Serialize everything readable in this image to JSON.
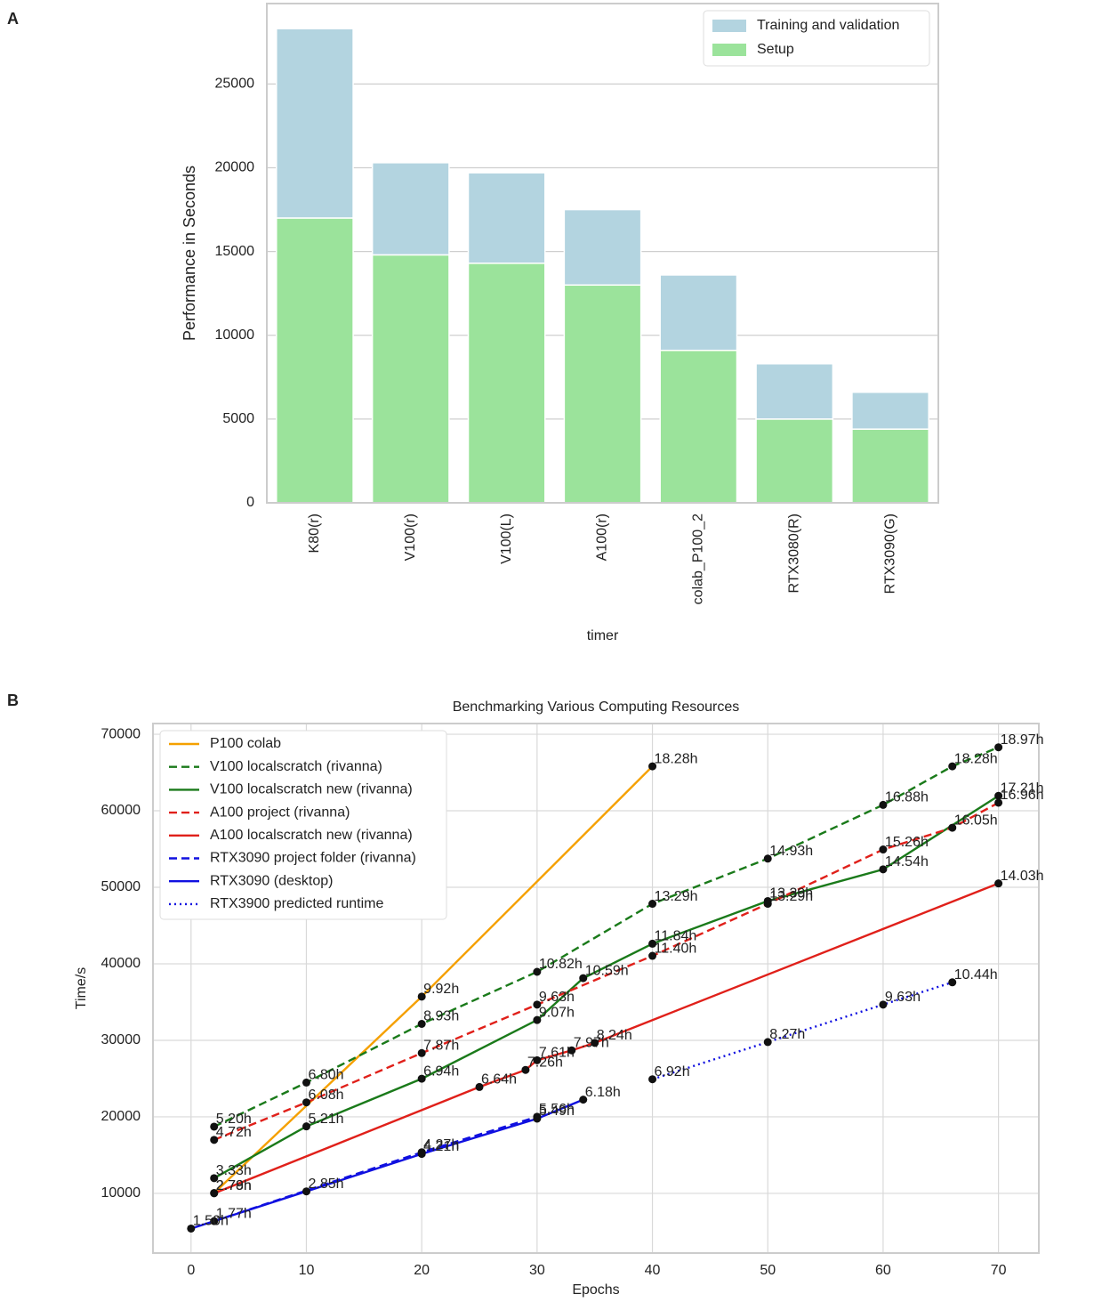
{
  "chart_data": [
    {
      "type": "bar",
      "panel_label": "A",
      "stacked": true,
      "categories": [
        "K80(r)",
        "V100(r)",
        "V100(L)",
        "A100(r)",
        "colab_P100_2",
        "RTX3080(R)",
        "RTX3090(G)"
      ],
      "series": [
        {
          "name": "Training and validation",
          "color": "#b3d4e0",
          "values": [
            11300,
            5500,
            5400,
            4500,
            4500,
            3300,
            2200
          ]
        },
        {
          "name": "Setup",
          "color": "#9be39b",
          "values": [
            17000,
            14800,
            14300,
            13000,
            9100,
            5000,
            4400
          ]
        }
      ],
      "xlabel": "timer",
      "ylabel": "Performance in Seconds",
      "ylim": [
        0,
        29800
      ],
      "yticks": [
        0,
        5000,
        10000,
        15000,
        20000,
        25000
      ],
      "grid": true,
      "legend": "upper right"
    },
    {
      "type": "line",
      "panel_label": "B",
      "title": "Benchmarking Various Computing Resources",
      "xlabel": "Epochs",
      "ylabel": "Time/s",
      "xlim": [
        -3.3,
        73.5
      ],
      "xticks": [
        0,
        10,
        20,
        30,
        40,
        50,
        60,
        70
      ],
      "ylim": [
        2200,
        71400
      ],
      "yticks": [
        10000,
        20000,
        30000,
        40000,
        50000,
        60000,
        70000
      ],
      "grid": true,
      "legend": "upper left",
      "marker_color": "#111111",
      "series": [
        {
          "name": "P100 colab",
          "color": "#f5a000",
          "style": "solid",
          "x": [
            2,
            20,
            40
          ],
          "values": [
            10044,
            35712,
            65808
          ],
          "value_labels": [
            "2.79h",
            "9.92h",
            "18.28h"
          ]
        },
        {
          "name": "V100 localscratch (rivanna)",
          "color": "#1a7a1a",
          "style": "dashed",
          "x": [
            2,
            10,
            20,
            30,
            40,
            50,
            60,
            66,
            70
          ],
          "values": [
            18720,
            24480,
            32148,
            38952,
            47844,
            53748,
            60768,
            65808,
            68292
          ],
          "value_labels": [
            "5.20h",
            "6.80h",
            "8.93h",
            "10.82h",
            "13.29h",
            "14.93h",
            "16.88h",
            "18.28h",
            "18.97h"
          ]
        },
        {
          "name": "V100 localscratch new (rivanna)",
          "color": "#1a7a1a",
          "style": "solid",
          "x": [
            2,
            10,
            20,
            30,
            34,
            40,
            50,
            60,
            70
          ],
          "values": [
            11988,
            18756,
            24984,
            32652,
            38124,
            42624,
            48204,
            52344,
            61956
          ],
          "value_labels": [
            "3.33h",
            "5.21h",
            "6.94h",
            "9.07h",
            "10.59h",
            "11.84h",
            "13.39h",
            "14.54h",
            "17.21h"
          ]
        },
        {
          "name": "A100 project (rivanna)",
          "color": "#e0201a",
          "style": "dashed",
          "x": [
            2,
            10,
            20,
            30,
            40,
            50,
            60,
            66,
            70
          ],
          "values": [
            16992,
            21888,
            28332,
            34668,
            41040,
            47844,
            54936,
            57780,
            61056
          ],
          "value_labels": [
            "4.72h",
            "6.08h",
            "7.87h",
            "9.63h",
            "11.40h",
            "13.29h",
            "15.26h",
            "16.05h",
            "16.96h"
          ]
        },
        {
          "name": "A100 localscratch new (rivanna)",
          "color": "#e0201a",
          "style": "solid",
          "x": [
            2,
            25,
            29,
            30,
            33,
            35,
            70
          ],
          "values": [
            10008,
            23904,
            26136,
            27396,
            28692,
            29664,
            50508
          ],
          "value_labels": [
            "2.78h",
            "6.64h",
            "7.26h",
            "7.61h",
            "7.97h",
            "8.24h",
            "14.03h"
          ]
        },
        {
          "name": "RTX3090 project folder (rivanna)",
          "color": "#1010e0",
          "style": "dashed",
          "x": [
            2,
            20,
            30
          ],
          "values": [
            6372,
            15372,
            20016
          ],
          "value_labels": [
            "1.77h",
            "4.27h",
            "5.56h"
          ]
        },
        {
          "name": "RTX3090 (desktop)",
          "color": "#1010e0",
          "style": "solid",
          "x": [
            0,
            10,
            20,
            30,
            34
          ],
          "values": [
            5400,
            10260,
            15156,
            19764,
            22248
          ],
          "value_labels": [
            "1.50h",
            "2.85h",
            "4.21h",
            "5.49h",
            "6.18h"
          ]
        },
        {
          "name": "RTX3900 predicted runtime",
          "color": "#1010e0",
          "style": "dotted",
          "x": [
            40,
            50,
            60,
            66
          ],
          "values": [
            24912,
            29772,
            34668,
            37584
          ],
          "value_labels": [
            "6.92h",
            "8.27h",
            "9.63h",
            "10.44h"
          ]
        }
      ]
    }
  ]
}
